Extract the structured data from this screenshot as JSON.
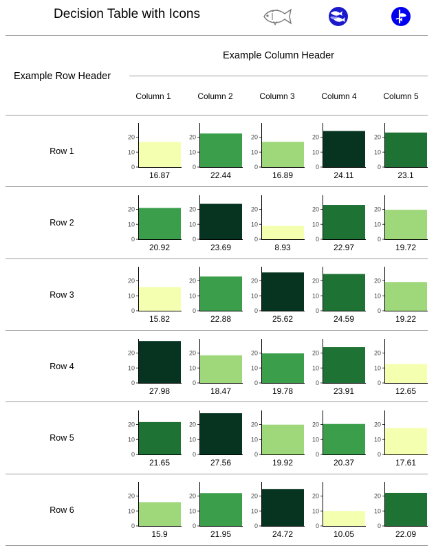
{
  "title": "Decision Table with Icons",
  "header_icons": [
    "fish-outline-icon",
    "blue-fish-pattern-icon",
    "blue-fish-circle-icon"
  ],
  "column_group_label": "Example Column Header",
  "row_group_label": "Example Row Header",
  "columns": [
    "Column 1",
    "Column 2",
    "Column 3",
    "Column 4",
    "Column 5"
  ],
  "rows": [
    "Row 1",
    "Row 2",
    "Row 3",
    "Row 4",
    "Row 5",
    "Row 6"
  ],
  "colors": {
    "scale": [
      "#f5ffb0",
      "#9fd87a",
      "#3a9e4b",
      "#1e7233",
      "#063420"
    ],
    "accent_blue": "#0000ee",
    "rule": "#9a9a9a"
  },
  "chart_data": {
    "type": "bar",
    "description_grid": "one single-bar chart per row/column cell; bar fill darkness ranks the five values within each row",
    "ylim": [
      0,
      28
    ],
    "yticks": [
      0,
      10,
      20
    ],
    "values": [
      [
        16.87,
        22.44,
        16.89,
        24.11,
        23.1
      ],
      [
        20.92,
        23.69,
        8.93,
        22.97,
        19.72
      ],
      [
        15.82,
        22.88,
        25.62,
        24.59,
        19.22
      ],
      [
        27.98,
        18.47,
        19.78,
        23.91,
        12.65
      ],
      [
        21.65,
        27.56,
        19.92,
        20.37,
        17.61
      ],
      [
        15.9,
        21.95,
        24.72,
        10.05,
        22.09
      ]
    ],
    "value_labels": [
      [
        "16.87",
        "22.44",
        "16.89",
        "24.11",
        "23.1"
      ],
      [
        "20.92",
        "23.69",
        "8.93",
        "22.97",
        "19.72"
      ],
      [
        "15.82",
        "22.88",
        "25.62",
        "24.59",
        "19.22"
      ],
      [
        "27.98",
        "18.47",
        "19.78",
        "23.91",
        "12.65"
      ],
      [
        "21.65",
        "27.56",
        "19.92",
        "20.37",
        "17.61"
      ],
      [
        "15.9",
        "21.95",
        "24.72",
        "10.05",
        "22.09"
      ]
    ]
  }
}
